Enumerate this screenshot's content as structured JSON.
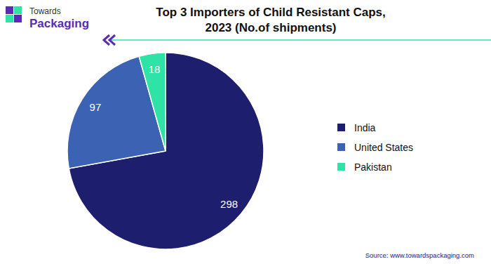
{
  "chart_data": {
    "type": "pie",
    "title": "Top 3 Importers of Child Resistant Caps,\n2023 (No.of shipments)",
    "categories": [
      "India",
      "United States",
      "Pakistan"
    ],
    "values": [
      298,
      97,
      18
    ],
    "colors": [
      "#1e1e6e",
      "#3b62b3",
      "#2fe3a7"
    ],
    "data_labels": true,
    "legend": "right",
    "annotations": [
      "Towards",
      "Packaging",
      "Source: www.towardspackaging.com"
    ]
  }
}
